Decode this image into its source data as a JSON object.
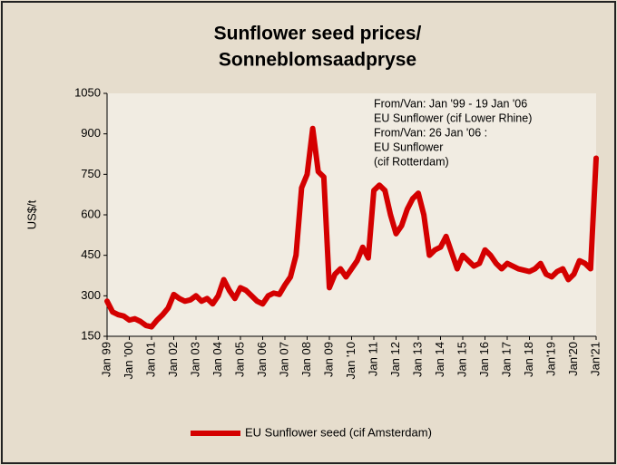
{
  "chart_data": {
    "type": "line",
    "title": [
      "Sunflower seed prices/",
      "Sonneblomsaadpryse"
    ],
    "ylabel": "US$/t",
    "annotation": [
      "From/Van: Jan '99 - 19 Jan '06",
      "EU Sunflower (cif Lower Rhine)",
      "From/Van: 26 Jan '06 :",
      "EU Sunflower",
      "(cif Rotterdam)"
    ],
    "categories": [
      "Jan 99",
      null,
      null,
      null,
      "Jan '00",
      null,
      null,
      null,
      "Jan 01",
      null,
      null,
      null,
      "Jan 02",
      null,
      null,
      null,
      "Jan 03",
      null,
      null,
      null,
      "Jan 04",
      null,
      null,
      null,
      "Jan 05",
      null,
      null,
      null,
      "Jan 06",
      null,
      null,
      null,
      "Jan 07",
      null,
      null,
      null,
      "Jan 08",
      null,
      null,
      null,
      "Jan 09",
      null,
      null,
      null,
      "Jan '10",
      null,
      null,
      null,
      "Jan 11",
      null,
      null,
      null,
      "Jan 12",
      null,
      null,
      null,
      "Jan 13",
      null,
      null,
      null,
      "Jan 14",
      null,
      null,
      null,
      "Jan 15",
      null,
      null,
      null,
      "Jan 16",
      null,
      null,
      null,
      "Jan 17",
      null,
      null,
      null,
      "Jan 18",
      null,
      null,
      null,
      "Jan'19",
      null,
      null,
      null,
      "Jan'20",
      null,
      null,
      null,
      "Jan'21"
    ],
    "series": [
      {
        "name": "EU Sunflower seed (cif Amsterdam)",
        "color": "#d40000",
        "values": [
          280,
          240,
          230,
          225,
          210,
          215,
          205,
          190,
          185,
          210,
          230,
          255,
          305,
          290,
          280,
          285,
          300,
          280,
          290,
          270,
          300,
          360,
          320,
          290,
          330,
          320,
          300,
          280,
          270,
          300,
          310,
          305,
          340,
          370,
          450,
          700,
          750,
          920,
          760,
          740,
          330,
          380,
          400,
          370,
          400,
          430,
          480,
          440,
          690,
          710,
          690,
          600,
          530,
          560,
          620,
          660,
          680,
          600,
          450,
          470,
          480,
          520,
          460,
          400,
          450,
          430,
          410,
          420,
          470,
          450,
          420,
          400,
          420,
          410,
          400,
          395,
          390,
          400,
          420,
          380,
          370,
          390,
          400,
          360,
          380,
          430,
          420,
          400,
          810
        ]
      }
    ],
    "ylim": [
      150,
      1050
    ],
    "yticks": [
      150,
      300,
      450,
      600,
      750,
      900,
      1050
    ],
    "legend": "bottom"
  }
}
